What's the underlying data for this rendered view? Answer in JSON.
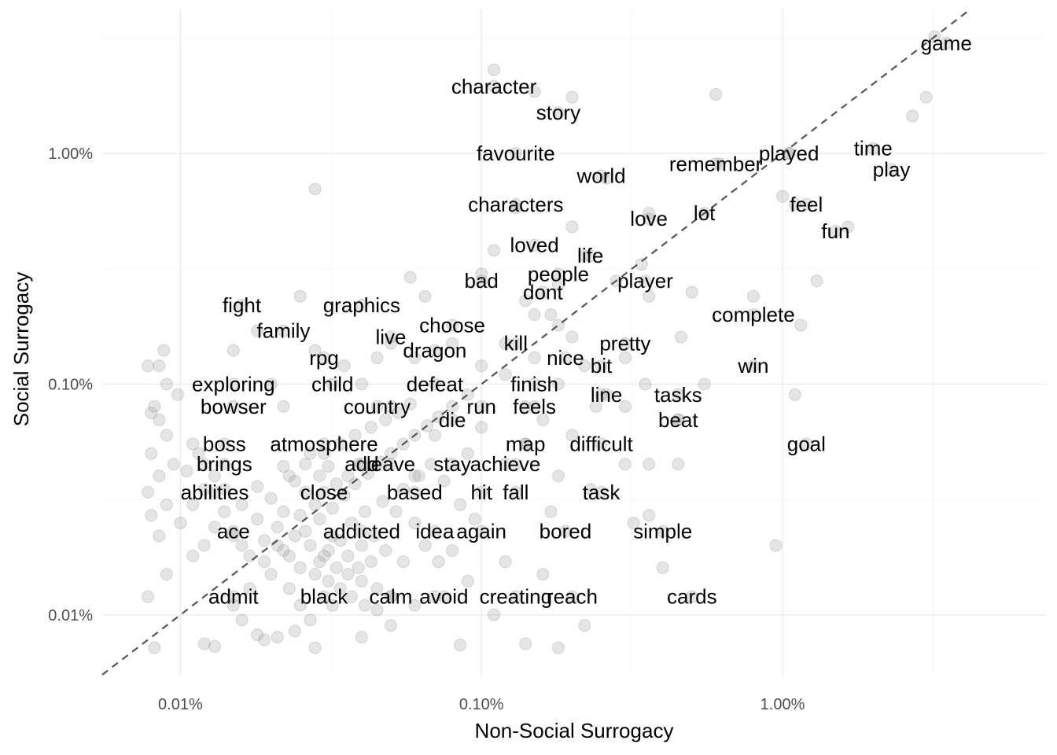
{
  "chart_data": {
    "type": "scatter",
    "title": "",
    "xlabel": "Non-Social Surrogacy",
    "ylabel": "Social Surrogacy",
    "x_scale": "log10",
    "y_scale": "log10",
    "xlim": [
      0.0055,
      7.5
    ],
    "ylim": [
      0.0055,
      4.2
    ],
    "x_ticks": [
      {
        "value": 0.01,
        "label": "0.01%"
      },
      {
        "value": 0.1,
        "label": "0.10%"
      },
      {
        "value": 1.0,
        "label": "1.00%"
      }
    ],
    "y_ticks": [
      {
        "value": 0.01,
        "label": "0.01%"
      },
      {
        "value": 0.1,
        "label": "0.10%"
      },
      {
        "value": 1.0,
        "label": "1.00%"
      }
    ],
    "grid": true,
    "legend": "none",
    "reference_line": "y = x (dashed)",
    "labeled_words": [
      {
        "label": "game",
        "x": 3.5,
        "y": 3.0
      },
      {
        "label": "character",
        "x": 0.11,
        "y": 1.95
      },
      {
        "label": "story",
        "x": 0.18,
        "y": 1.5
      },
      {
        "label": "favourite",
        "x": 0.13,
        "y": 1.0
      },
      {
        "label": "world",
        "x": 0.25,
        "y": 0.8
      },
      {
        "label": "remember",
        "x": 0.6,
        "y": 0.9
      },
      {
        "label": "played",
        "x": 1.05,
        "y": 1.0
      },
      {
        "label": "time",
        "x": 2.0,
        "y": 1.05
      },
      {
        "label": "play",
        "x": 2.3,
        "y": 0.85
      },
      {
        "label": "characters",
        "x": 0.13,
        "y": 0.6
      },
      {
        "label": "feel",
        "x": 1.2,
        "y": 0.6
      },
      {
        "label": "lot",
        "x": 0.55,
        "y": 0.55
      },
      {
        "label": "love",
        "x": 0.36,
        "y": 0.52
      },
      {
        "label": "fun",
        "x": 1.5,
        "y": 0.46
      },
      {
        "label": "loved",
        "x": 0.15,
        "y": 0.4
      },
      {
        "label": "life",
        "x": 0.23,
        "y": 0.36
      },
      {
        "label": "people",
        "x": 0.18,
        "y": 0.3
      },
      {
        "label": "bad",
        "x": 0.1,
        "y": 0.28
      },
      {
        "label": "player",
        "x": 0.35,
        "y": 0.28
      },
      {
        "label": "dont",
        "x": 0.16,
        "y": 0.25
      },
      {
        "label": "fight",
        "x": 0.016,
        "y": 0.22
      },
      {
        "label": "graphics",
        "x": 0.04,
        "y": 0.22
      },
      {
        "label": "complete",
        "x": 0.8,
        "y": 0.2
      },
      {
        "label": "choose",
        "x": 0.08,
        "y": 0.18
      },
      {
        "label": "family",
        "x": 0.022,
        "y": 0.17
      },
      {
        "label": "live",
        "x": 0.05,
        "y": 0.16
      },
      {
        "label": "kill",
        "x": 0.13,
        "y": 0.15
      },
      {
        "label": "pretty",
        "x": 0.3,
        "y": 0.15
      },
      {
        "label": "dragon",
        "x": 0.07,
        "y": 0.14
      },
      {
        "label": "rpg",
        "x": 0.03,
        "y": 0.13
      },
      {
        "label": "nice",
        "x": 0.19,
        "y": 0.13
      },
      {
        "label": "bit",
        "x": 0.25,
        "y": 0.12
      },
      {
        "label": "win",
        "x": 0.8,
        "y": 0.12
      },
      {
        "label": "exploring",
        "x": 0.015,
        "y": 0.1
      },
      {
        "label": "child",
        "x": 0.032,
        "y": 0.1
      },
      {
        "label": "defeat",
        "x": 0.07,
        "y": 0.1
      },
      {
        "label": "finish",
        "x": 0.15,
        "y": 0.1
      },
      {
        "label": "line",
        "x": 0.26,
        "y": 0.09
      },
      {
        "label": "tasks",
        "x": 0.45,
        "y": 0.09
      },
      {
        "label": "bowser",
        "x": 0.015,
        "y": 0.08
      },
      {
        "label": "country",
        "x": 0.045,
        "y": 0.08
      },
      {
        "label": "run",
        "x": 0.1,
        "y": 0.08
      },
      {
        "label": "feels",
        "x": 0.15,
        "y": 0.08
      },
      {
        "label": "die",
        "x": 0.08,
        "y": 0.07
      },
      {
        "label": "beat",
        "x": 0.45,
        "y": 0.07
      },
      {
        "label": "boss",
        "x": 0.014,
        "y": 0.055
      },
      {
        "label": "atmosphere",
        "x": 0.03,
        "y": 0.055
      },
      {
        "label": "map",
        "x": 0.14,
        "y": 0.055
      },
      {
        "label": "difficult",
        "x": 0.25,
        "y": 0.055
      },
      {
        "label": "goal",
        "x": 1.2,
        "y": 0.055
      },
      {
        "label": "brings",
        "x": 0.014,
        "y": 0.045
      },
      {
        "label": "add",
        "x": 0.04,
        "y": 0.045
      },
      {
        "label": "leave",
        "x": 0.05,
        "y": 0.045
      },
      {
        "label": "stay",
        "x": 0.08,
        "y": 0.045
      },
      {
        "label": "achieve",
        "x": 0.12,
        "y": 0.045
      },
      {
        "label": "abilities",
        "x": 0.013,
        "y": 0.034
      },
      {
        "label": "close",
        "x": 0.03,
        "y": 0.034
      },
      {
        "label": "based",
        "x": 0.06,
        "y": 0.034
      },
      {
        "label": "hit",
        "x": 0.1,
        "y": 0.034
      },
      {
        "label": "fall",
        "x": 0.13,
        "y": 0.034
      },
      {
        "label": "task",
        "x": 0.25,
        "y": 0.034
      },
      {
        "label": "ace",
        "x": 0.015,
        "y": 0.023
      },
      {
        "label": "addicted",
        "x": 0.04,
        "y": 0.023
      },
      {
        "label": "idea",
        "x": 0.07,
        "y": 0.023
      },
      {
        "label": "again",
        "x": 0.1,
        "y": 0.023
      },
      {
        "label": "bored",
        "x": 0.19,
        "y": 0.023
      },
      {
        "label": "simple",
        "x": 0.4,
        "y": 0.023
      },
      {
        "label": "admit",
        "x": 0.015,
        "y": 0.012
      },
      {
        "label": "black",
        "x": 0.03,
        "y": 0.012
      },
      {
        "label": "calm",
        "x": 0.05,
        "y": 0.012
      },
      {
        "label": "avoid",
        "x": 0.075,
        "y": 0.012
      },
      {
        "label": "creating",
        "x": 0.13,
        "y": 0.012
      },
      {
        "label": "reach",
        "x": 0.2,
        "y": 0.012
      },
      {
        "label": "cards",
        "x": 0.5,
        "y": 0.012
      }
    ],
    "unlabeled_points": [
      [
        3.2,
        3.2
      ],
      [
        3.0,
        1.75
      ],
      [
        2.7,
        1.45
      ],
      [
        0.6,
        1.8
      ],
      [
        0.2,
        1.75
      ],
      [
        0.15,
        1.85
      ],
      [
        0.11,
        2.3
      ],
      [
        1.05,
        1.0
      ],
      [
        0.62,
        0.9
      ],
      [
        0.26,
        0.78
      ],
      [
        0.13,
        0.58
      ],
      [
        0.028,
        0.7
      ],
      [
        1.0,
        0.65
      ],
      [
        1.1,
        0.6
      ],
      [
        0.36,
        0.55
      ],
      [
        0.2,
        0.48
      ],
      [
        1.65,
        0.48
      ],
      [
        0.11,
        0.38
      ],
      [
        0.22,
        0.36
      ],
      [
        0.34,
        0.33
      ],
      [
        0.1,
        0.3
      ],
      [
        0.058,
        0.29
      ],
      [
        0.28,
        0.28
      ],
      [
        0.18,
        0.27
      ],
      [
        0.5,
        0.25
      ],
      [
        0.8,
        0.24
      ],
      [
        1.3,
        0.28
      ],
      [
        0.36,
        0.24
      ],
      [
        0.025,
        0.24
      ],
      [
        0.065,
        0.24
      ],
      [
        0.14,
        0.23
      ],
      [
        0.17,
        0.2
      ],
      [
        1.15,
        0.18
      ],
      [
        0.18,
        0.18
      ],
      [
        0.15,
        0.2
      ],
      [
        0.46,
        0.16
      ],
      [
        0.018,
        0.17
      ],
      [
        0.2,
        0.16
      ],
      [
        0.12,
        0.15
      ],
      [
        0.05,
        0.15
      ],
      [
        0.3,
        0.13
      ],
      [
        0.15,
        0.13
      ],
      [
        0.22,
        0.12
      ],
      [
        0.55,
        0.1
      ],
      [
        0.04,
        0.1
      ],
      [
        0.02,
        0.1
      ],
      [
        0.25,
        0.09
      ],
      [
        0.14,
        0.08
      ],
      [
        0.05,
        0.08
      ],
      [
        0.09,
        0.09
      ],
      [
        0.45,
        0.07
      ],
      [
        0.3,
        0.08
      ],
      [
        1.1,
        0.09
      ],
      [
        0.022,
        0.08
      ],
      [
        0.35,
        0.1
      ],
      [
        0.18,
        0.1
      ],
      [
        0.12,
        0.11
      ],
      [
        0.035,
        0.12
      ],
      [
        0.06,
        0.13
      ],
      [
        0.015,
        0.14
      ],
      [
        0.028,
        0.14
      ],
      [
        0.045,
        0.13
      ],
      [
        0.1,
        0.12
      ],
      [
        0.08,
        0.15
      ],
      [
        0.24,
        0.08
      ],
      [
        0.16,
        0.07
      ],
      [
        0.1,
        0.065
      ],
      [
        0.07,
        0.06
      ],
      [
        0.14,
        0.055
      ],
      [
        0.2,
        0.06
      ],
      [
        0.3,
        0.045
      ],
      [
        0.36,
        0.045
      ],
      [
        0.45,
        0.045
      ],
      [
        0.13,
        0.045
      ],
      [
        0.09,
        0.05
      ],
      [
        0.06,
        0.04
      ],
      [
        0.18,
        0.04
      ],
      [
        0.23,
        0.035
      ],
      [
        0.17,
        0.028
      ],
      [
        0.36,
        0.027
      ],
      [
        0.32,
        0.025
      ],
      [
        0.4,
        0.016
      ],
      [
        0.95,
        0.02
      ],
      [
        0.16,
        0.015
      ],
      [
        0.12,
        0.017
      ],
      [
        0.09,
        0.014
      ],
      [
        0.07,
        0.012
      ],
      [
        0.22,
        0.009
      ],
      [
        0.14,
        0.0075
      ],
      [
        0.18,
        0.0072
      ],
      [
        0.085,
        0.0074
      ],
      [
        0.05,
        0.009
      ],
      [
        0.06,
        0.011
      ],
      [
        0.11,
        0.01
      ],
      [
        0.04,
        0.008
      ],
      [
        0.032,
        0.011
      ],
      [
        0.012,
        0.0075
      ],
      [
        0.0082,
        0.0072
      ],
      [
        0.013,
        0.0073
      ],
      [
        0.019,
        0.0078
      ],
      [
        0.028,
        0.0072
      ],
      [
        0.0078,
        0.012
      ],
      [
        0.009,
        0.015
      ],
      [
        0.011,
        0.018
      ],
      [
        0.0085,
        0.022
      ],
      [
        0.01,
        0.025
      ],
      [
        0.008,
        0.027
      ],
      [
        0.009,
        0.03
      ],
      [
        0.0078,
        0.034
      ],
      [
        0.0085,
        0.04
      ],
      [
        0.0095,
        0.045
      ],
      [
        0.008,
        0.05
      ],
      [
        0.009,
        0.06
      ],
      [
        0.0085,
        0.07
      ],
      [
        0.0082,
        0.08
      ],
      [
        0.009,
        0.1
      ],
      [
        0.0078,
        0.12
      ],
      [
        0.0088,
        0.14
      ],
      [
        0.0085,
        0.12
      ],
      [
        0.0098,
        0.09
      ],
      [
        0.008,
        0.075
      ],
      [
        0.011,
        0.055
      ],
      [
        0.012,
        0.045
      ],
      [
        0.014,
        0.035
      ],
      [
        0.016,
        0.03
      ],
      [
        0.018,
        0.026
      ],
      [
        0.021,
        0.024
      ],
      [
        0.024,
        0.022
      ],
      [
        0.027,
        0.02
      ],
      [
        0.03,
        0.018
      ],
      [
        0.033,
        0.016
      ],
      [
        0.036,
        0.015
      ],
      [
        0.04,
        0.014
      ],
      [
        0.045,
        0.013
      ],
      [
        0.05,
        0.012
      ],
      [
        0.02,
        0.015
      ],
      [
        0.023,
        0.013
      ],
      [
        0.025,
        0.011
      ],
      [
        0.027,
        0.0095
      ],
      [
        0.024,
        0.0085
      ],
      [
        0.021,
        0.008
      ],
      [
        0.018,
        0.0082
      ],
      [
        0.016,
        0.0095
      ],
      [
        0.015,
        0.011
      ],
      [
        0.017,
        0.013
      ],
      [
        0.019,
        0.017
      ],
      [
        0.022,
        0.019
      ],
      [
        0.026,
        0.023
      ],
      [
        0.029,
        0.026
      ],
      [
        0.032,
        0.029
      ],
      [
        0.035,
        0.033
      ],
      [
        0.038,
        0.037
      ],
      [
        0.042,
        0.041
      ],
      [
        0.046,
        0.046
      ],
      [
        0.05,
        0.05
      ],
      [
        0.055,
        0.055
      ],
      [
        0.06,
        0.06
      ],
      [
        0.066,
        0.066
      ],
      [
        0.072,
        0.072
      ],
      [
        0.08,
        0.08
      ],
      [
        0.028,
        0.03
      ],
      [
        0.025,
        0.027
      ],
      [
        0.022,
        0.028
      ],
      [
        0.02,
        0.032
      ],
      [
        0.018,
        0.036
      ],
      [
        0.023,
        0.04
      ],
      [
        0.026,
        0.045
      ],
      [
        0.03,
        0.05
      ],
      [
        0.034,
        0.055
      ],
      [
        0.038,
        0.06
      ],
      [
        0.043,
        0.065
      ],
      [
        0.048,
        0.07
      ],
      [
        0.053,
        0.075
      ],
      [
        0.058,
        0.082
      ],
      [
        0.012,
        0.02
      ],
      [
        0.013,
        0.024
      ],
      [
        0.014,
        0.028
      ],
      [
        0.015,
        0.022
      ],
      [
        0.016,
        0.02
      ],
      [
        0.017,
        0.018
      ],
      [
        0.019,
        0.021
      ],
      [
        0.021,
        0.02
      ],
      [
        0.023,
        0.018
      ],
      [
        0.025,
        0.016
      ],
      [
        0.028,
        0.015
      ],
      [
        0.031,
        0.014
      ],
      [
        0.034,
        0.013
      ],
      [
        0.037,
        0.012
      ],
      [
        0.041,
        0.011
      ],
      [
        0.045,
        0.0105
      ],
      [
        0.011,
        0.03
      ],
      [
        0.012,
        0.035
      ],
      [
        0.013,
        0.04
      ],
      [
        0.0105,
        0.042
      ],
      [
        0.0115,
        0.05
      ],
      [
        0.026,
        0.034
      ],
      [
        0.024,
        0.038
      ],
      [
        0.022,
        0.044
      ],
      [
        0.027,
        0.05
      ],
      [
        0.031,
        0.044
      ],
      [
        0.029,
        0.04
      ],
      [
        0.033,
        0.037
      ],
      [
        0.036,
        0.04
      ],
      [
        0.039,
        0.045
      ],
      [
        0.055,
        0.035
      ],
      [
        0.062,
        0.04
      ],
      [
        0.068,
        0.045
      ],
      [
        0.075,
        0.038
      ],
      [
        0.085,
        0.03
      ],
      [
        0.095,
        0.026
      ],
      [
        0.06,
        0.025
      ],
      [
        0.065,
        0.02
      ],
      [
        0.072,
        0.017
      ],
      [
        0.08,
        0.019
      ],
      [
        0.055,
        0.017
      ],
      [
        0.048,
        0.019
      ],
      [
        0.044,
        0.022
      ],
      [
        0.052,
        0.028
      ],
      [
        0.047,
        0.031
      ],
      [
        0.041,
        0.028
      ],
      [
        0.037,
        0.025
      ],
      [
        0.034,
        0.021
      ],
      [
        0.031,
        0.019
      ],
      [
        0.029,
        0.017
      ],
      [
        0.032,
        0.022
      ],
      [
        0.036,
        0.018
      ],
      [
        0.039,
        0.016
      ],
      [
        0.043,
        0.017
      ],
      [
        0.04,
        0.02
      ]
    ]
  }
}
